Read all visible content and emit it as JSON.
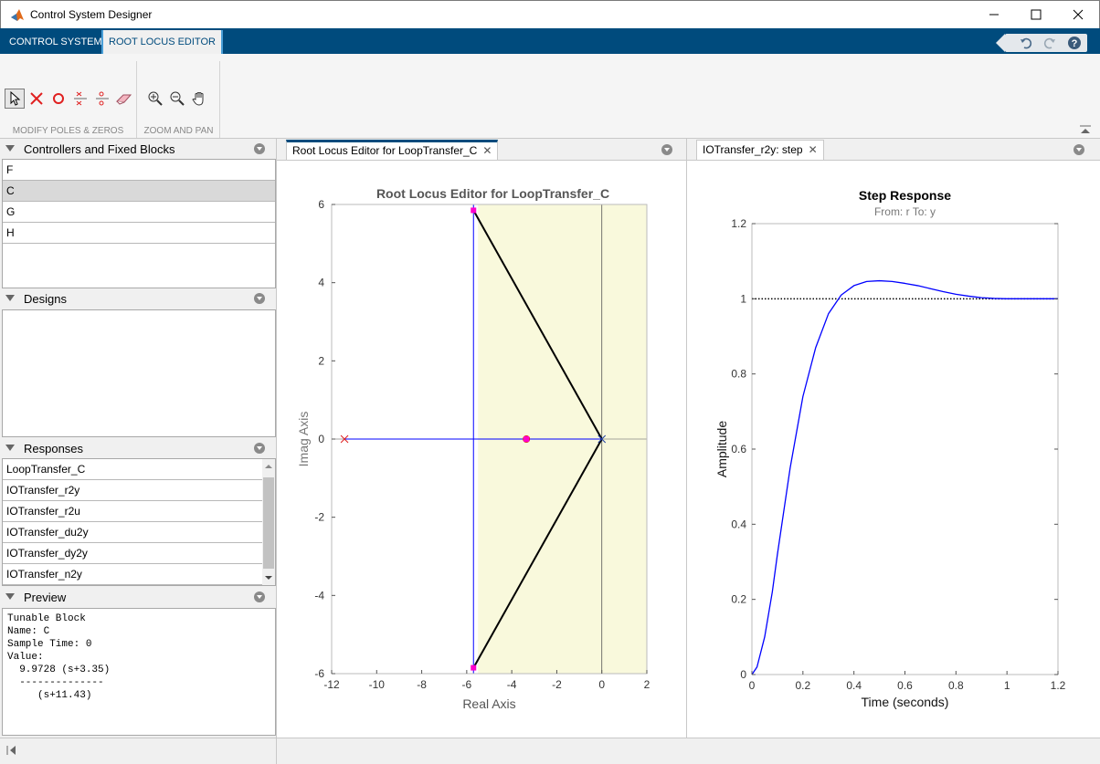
{
  "window": {
    "title": "Control System Designer"
  },
  "tabs": [
    {
      "label": "CONTROL SYSTEM"
    },
    {
      "label": "ROOT LOCUS EDITOR"
    }
  ],
  "toolstrip": {
    "section1": "MODIFY POLES & ZEROS",
    "section2": "ZOOM AND PAN"
  },
  "panels": {
    "controllers": {
      "title": "Controllers and Fixed Blocks",
      "items": [
        "F",
        "C",
        "G",
        "H"
      ],
      "selected": "C"
    },
    "designs": {
      "title": "Designs"
    },
    "responses": {
      "title": "Responses",
      "items": [
        "LoopTransfer_C",
        "IOTransfer_r2y",
        "IOTransfer_r2u",
        "IOTransfer_du2y",
        "IOTransfer_dy2y",
        "IOTransfer_n2y"
      ]
    },
    "preview": {
      "title": "Preview",
      "lines": [
        "Tunable Block",
        "Name: C",
        "Sample Time: 0",
        "Value:",
        "  9.9728 (s+3.35)",
        "  --------------",
        "     (s+11.43)"
      ]
    }
  },
  "documents": {
    "rootlocus_tab": "Root Locus Editor for LoopTransfer_C",
    "step_tab": "IOTransfer_r2y: step"
  },
  "chart_data": [
    {
      "type": "line",
      "title": "Root Locus Editor for LoopTransfer_C",
      "xlabel": "Real Axis",
      "ylabel": "Imag Axis",
      "xlim": [
        -12,
        2
      ],
      "ylim": [
        -6,
        6
      ],
      "xticks": [
        -12,
        -10,
        -8,
        -6,
        -4,
        -2,
        0,
        2
      ],
      "yticks": [
        -6,
        -4,
        -2,
        0,
        2,
        4,
        6
      ],
      "stable_region_shading": {
        "x_from": -5.5,
        "x_to": 2,
        "color": "#f9f9dc"
      },
      "open_loop_poles": [
        {
          "x": -11.43,
          "y": 0
        },
        {
          "x": 0,
          "y": 0
        }
      ],
      "closed_loop_poles": [
        {
          "x": -5.7,
          "y": 5.85
        },
        {
          "x": -5.7,
          "y": -5.85
        },
        {
          "x": -3.35,
          "y": 0
        }
      ],
      "zeros": [
        {
          "x": -3.35,
          "y": 0
        }
      ],
      "series": [
        {
          "name": "locus-branch-upper",
          "color": "#0000ff",
          "x": [
            -5.7,
            -5.7
          ],
          "y": [
            0,
            6
          ]
        },
        {
          "name": "locus-branch-lower",
          "color": "#0000ff",
          "x": [
            -5.7,
            -5.7
          ],
          "y": [
            0,
            -6
          ]
        },
        {
          "name": "locus-real",
          "color": "#0000ff",
          "x": [
            -11.43,
            0
          ],
          "y": [
            0,
            0
          ]
        },
        {
          "name": "damping-upper",
          "color": "#000000",
          "x": [
            0,
            -5.7
          ],
          "y": [
            0,
            5.85
          ]
        },
        {
          "name": "damping-lower",
          "color": "#000000",
          "x": [
            0,
            -5.7
          ],
          "y": [
            0,
            -5.85
          ]
        }
      ]
    },
    {
      "type": "line",
      "title": "Step Response",
      "subtitle": "From: r  To: y",
      "xlabel": "Time (seconds)",
      "ylabel": "Amplitude",
      "xlim": [
        0,
        1.2
      ],
      "ylim": [
        0,
        1.2
      ],
      "xticks": [
        0,
        0.2,
        0.4,
        0.6,
        0.8,
        1,
        1.2
      ],
      "yticks": [
        0,
        0.2,
        0.4,
        0.6,
        0.8,
        1,
        1.2
      ],
      "reference_line": 1,
      "series": [
        {
          "name": "step-response",
          "color": "#0000ff",
          "x": [
            0,
            0.02,
            0.05,
            0.08,
            0.1,
            0.15,
            0.2,
            0.25,
            0.3,
            0.35,
            0.4,
            0.45,
            0.5,
            0.55,
            0.6,
            0.65,
            0.7,
            0.75,
            0.8,
            0.85,
            0.9,
            0.95,
            1.0,
            1.05,
            1.1,
            1.15,
            1.2
          ],
          "y": [
            0,
            0.02,
            0.1,
            0.22,
            0.32,
            0.55,
            0.74,
            0.87,
            0.96,
            1.01,
            1.035,
            1.046,
            1.048,
            1.046,
            1.041,
            1.035,
            1.027,
            1.019,
            1.012,
            1.007,
            1.003,
            1.001,
            1.0,
            1.0,
            1.0,
            1.0,
            1.0
          ]
        }
      ]
    }
  ]
}
